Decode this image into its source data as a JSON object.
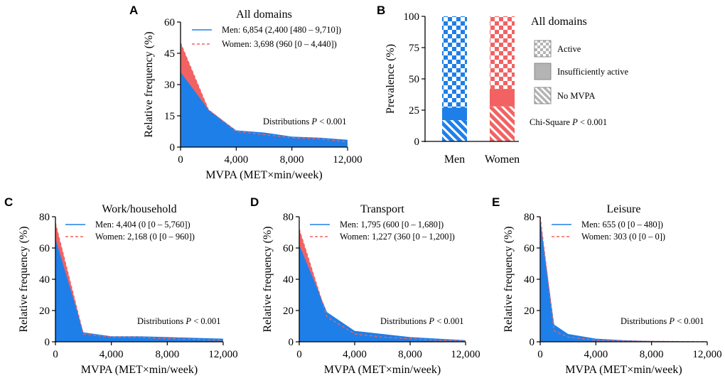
{
  "colors": {
    "men": "#1e7fe8",
    "women": "#f26262",
    "gray": "#b4b4b4"
  },
  "chart_data": [
    {
      "panel": "A",
      "type": "area",
      "title": "All domains",
      "xlabel": "MVPA (MET×min/week)",
      "ylabel": "Relative frequency (%)",
      "xlim": [
        0,
        12000
      ],
      "ylim": [
        0,
        60
      ],
      "xticks": [
        0,
        4000,
        8000,
        12000
      ],
      "xtick_labels": [
        "0",
        "4,000",
        "8,000",
        "12,000"
      ],
      "yticks": [
        0,
        15,
        30,
        45,
        60
      ],
      "ytick_labels": [
        "0",
        "15",
        "30",
        "45",
        "60"
      ],
      "x": [
        0,
        2000,
        4000,
        6000,
        8000,
        10000,
        12000
      ],
      "series": [
        {
          "name": "Men",
          "legend": "Men: 6,854 (2,400 [480 – 9,710])",
          "values": [
            36,
            18,
            8,
            7,
            5,
            4.5,
            3.5
          ]
        },
        {
          "name": "Women",
          "legend": "Women: 3,698 (960 [0 – 4,440])",
          "values": [
            50,
            18,
            7.5,
            6,
            4.5,
            4,
            2.5
          ]
        }
      ],
      "annotation": {
        "text": "Distributions ",
        "p": "P",
        "rest": " < 0.001"
      }
    },
    {
      "panel": "B",
      "type": "bar",
      "stacked": true,
      "title": "All domains",
      "ylabel": "Prevalence (%)",
      "categories": [
        "Men",
        "Women"
      ],
      "ylim": [
        0,
        100
      ],
      "yticks": [
        0,
        25,
        50,
        75,
        100
      ],
      "ytick_labels": [
        "0",
        "25",
        "50",
        "75",
        "100"
      ],
      "series": [
        {
          "name": "No MVPA",
          "values": [
            17,
            28
          ]
        },
        {
          "name": "Insufficiently active",
          "values": [
            10,
            14
          ]
        },
        {
          "name": "Active",
          "values": [
            73,
            58
          ]
        }
      ],
      "legend": [
        "Active",
        "Insufficiently active",
        "No MVPA"
      ],
      "annotation": {
        "text": "Chi-Square ",
        "p": "P",
        "rest": " < 0.001"
      }
    },
    {
      "panel": "C",
      "type": "area",
      "title": "Work/household",
      "xlabel": "MVPA (MET×min/week)",
      "ylabel": "Relative frequency (%)",
      "xlim": [
        0,
        12000
      ],
      "ylim": [
        0,
        80
      ],
      "xticks": [
        0,
        4000,
        8000,
        12000
      ],
      "xtick_labels": [
        "0",
        "4,000",
        "8,000",
        "12,000"
      ],
      "yticks": [
        0,
        20,
        40,
        60,
        80
      ],
      "ytick_labels": [
        "0",
        "20",
        "40",
        "60",
        "80"
      ],
      "x": [
        0,
        2000,
        4000,
        6000,
        8000,
        10000,
        12000
      ],
      "series": [
        {
          "name": "Men",
          "legend": "Men: 4,404 (0 [0 – 5,760])",
          "values": [
            66,
            6,
            3.5,
            3.5,
            3,
            2.5,
            2
          ]
        },
        {
          "name": "Women",
          "legend": "Women: 2,168 (0 [0 – 960])",
          "values": [
            76,
            5,
            3,
            3,
            2,
            1.5,
            1
          ]
        }
      ],
      "annotation": {
        "text": "Distributions ",
        "p": "P",
        "rest": " < 0.001"
      }
    },
    {
      "panel": "D",
      "type": "area",
      "title": "Transport",
      "xlabel": "MVPA (MET×min/week)",
      "ylabel": "Relative frequency (%)",
      "xlim": [
        0,
        12000
      ],
      "ylim": [
        0,
        80
      ],
      "xticks": [
        0,
        4000,
        8000,
        12000
      ],
      "xtick_labels": [
        "0",
        "4,000",
        "8,000",
        "12,000"
      ],
      "yticks": [
        0,
        20,
        40,
        60,
        80
      ],
      "ytick_labels": [
        "0",
        "20",
        "40",
        "60",
        "80"
      ],
      "x": [
        0,
        2000,
        4000,
        6000,
        8000,
        10000,
        12000
      ],
      "series": [
        {
          "name": "Men",
          "legend": "Men: 1,795 (600 [0 – 1,680])",
          "values": [
            62,
            19,
            7,
            5,
            3,
            2,
            1
          ]
        },
        {
          "name": "Women",
          "legend": "Women: 1,227 (360 [0 – 1,200])",
          "values": [
            72,
            16,
            5,
            3,
            2,
            1,
            0.5
          ]
        }
      ],
      "annotation": {
        "text": "Distributions ",
        "p": "P",
        "rest": " < 0.001"
      }
    },
    {
      "panel": "E",
      "type": "area",
      "title": "Leisure",
      "xlabel": "MVPA (MET×min/week)",
      "ylabel": "Relative frequency (%)",
      "xlim": [
        0,
        12000
      ],
      "ylim": [
        0,
        80
      ],
      "xticks": [
        0,
        4000,
        8000,
        12000
      ],
      "xtick_labels": [
        "0",
        "4,000",
        "8,000",
        "12,000"
      ],
      "yticks": [
        0,
        20,
        40,
        60,
        80
      ],
      "ytick_labels": [
        "0",
        "20",
        "40",
        "60",
        "80"
      ],
      "x": [
        0,
        1000,
        2000,
        4000,
        6000,
        8000,
        10000,
        12000
      ],
      "series": [
        {
          "name": "Men",
          "legend": "Men: 655 (0 [0 – 480])",
          "values": [
            78,
            11,
            5,
            2,
            1,
            0.5,
            0.3,
            0.2
          ]
        },
        {
          "name": "Women",
          "legend": "Women: 303 (0 [0 – 0])",
          "values": [
            80,
            7,
            3,
            1,
            0.5,
            0.3,
            0.2,
            0.1
          ]
        }
      ],
      "annotation": {
        "text": "Distributions ",
        "p": "P",
        "rest": " < 0.001"
      }
    }
  ]
}
